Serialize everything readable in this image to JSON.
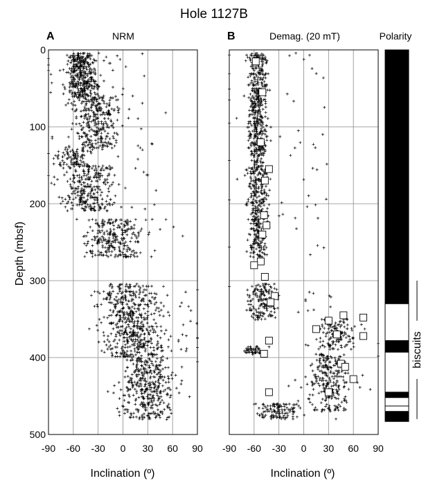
{
  "chart_data": {
    "type": "scatter",
    "title": "Hole 1127B",
    "ylabel": "Depth (mbsf)",
    "ylim": [
      0,
      500
    ],
    "y_ticks": [
      "0",
      "100",
      "200",
      "300",
      "400",
      "500"
    ],
    "panels": [
      {
        "letter": "A",
        "title": "NRM",
        "xlabel": "Inclination (º)",
        "xlim": [
          -90,
          90
        ],
        "x_ticks": [
          "-90",
          "-60",
          "-30",
          "0",
          "30",
          "60",
          "90"
        ],
        "grid": true,
        "clusters": [
          {
            "depth": [
              5,
              60
            ],
            "incl_mean": -50,
            "incl_spread": 15,
            "n": 400
          },
          {
            "depth": [
              60,
              80
            ],
            "incl_mean": -35,
            "incl_spread": 25,
            "n": 120
          },
          {
            "depth": [
              80,
              130
            ],
            "incl_mean": -30,
            "incl_spread": 22,
            "n": 220
          },
          {
            "depth": [
              130,
              150
            ],
            "incl_mean": -60,
            "incl_spread": 15,
            "n": 90
          },
          {
            "depth": [
              150,
              210
            ],
            "incl_mean": -40,
            "incl_spread": 25,
            "n": 300
          },
          {
            "depth": [
              220,
              270
            ],
            "incl_mean": -10,
            "incl_spread": 30,
            "n": 260
          },
          {
            "depth": [
              305,
              360
            ],
            "incl_mean": 10,
            "incl_spread": 30,
            "n": 300
          },
          {
            "depth": [
              360,
              400
            ],
            "incl_mean": 15,
            "incl_spread": 30,
            "n": 260
          },
          {
            "depth": [
              400,
              480
            ],
            "incl_mean": 30,
            "incl_spread": 25,
            "n": 380
          }
        ]
      },
      {
        "letter": "B",
        "title": "Demag. (20 mT)",
        "xlabel": "Inclination (º)",
        "xlim": [
          -90,
          90
        ],
        "x_ticks": [
          "-90",
          "-60",
          "-30",
          "0",
          "30",
          "60",
          "90"
        ],
        "grid": true,
        "clusters": [
          {
            "depth": [
              5,
              130
            ],
            "incl_mean": -55,
            "incl_spread": 10,
            "n": 450
          },
          {
            "depth": [
              130,
              270
            ],
            "incl_mean": -55,
            "incl_spread": 10,
            "n": 420
          },
          {
            "depth": [
              305,
              350
            ],
            "incl_mean": -50,
            "incl_spread": 14,
            "n": 170
          },
          {
            "depth": [
              350,
              390
            ],
            "incl_mean": 40,
            "incl_spread": 18,
            "n": 130
          },
          {
            "depth": [
              385,
              395
            ],
            "incl_mean": -60,
            "incl_spread": 10,
            "n": 50
          },
          {
            "depth": [
              395,
              470
            ],
            "incl_mean": 30,
            "incl_spread": 20,
            "n": 260
          },
          {
            "depth": [
              460,
              480
            ],
            "incl_mean": -30,
            "incl_spread": 20,
            "n": 120
          }
        ],
        "discrete_samples": [
          {
            "incl": -58,
            "depth": 15
          },
          {
            "incl": -50,
            "depth": 55
          },
          {
            "incl": -52,
            "depth": 120
          },
          {
            "incl": -42,
            "depth": 155
          },
          {
            "incl": -47,
            "depth": 170
          },
          {
            "incl": -48,
            "depth": 215
          },
          {
            "incl": -45,
            "depth": 228
          },
          {
            "incl": -50,
            "depth": 240
          },
          {
            "incl": -52,
            "depth": 275
          },
          {
            "incl": -60,
            "depth": 280
          },
          {
            "incl": -47,
            "depth": 295
          },
          {
            "incl": -35,
            "depth": 320
          },
          {
            "incl": -40,
            "depth": 328
          },
          {
            "incl": 30,
            "depth": 352
          },
          {
            "incl": 48,
            "depth": 345
          },
          {
            "incl": 72,
            "depth": 348
          },
          {
            "incl": 15,
            "depth": 363
          },
          {
            "incl": 40,
            "depth": 370
          },
          {
            "incl": 72,
            "depth": 372
          },
          {
            "incl": -42,
            "depth": 378
          },
          {
            "incl": -48,
            "depth": 395
          },
          {
            "incl": 45,
            "depth": 408
          },
          {
            "incl": 50,
            "depth": 412
          },
          {
            "incl": 60,
            "depth": 428
          },
          {
            "incl": 30,
            "depth": 445
          },
          {
            "incl": -42,
            "depth": 445
          }
        ]
      }
    ],
    "polarity": {
      "title": "Polarity",
      "intervals": [
        {
          "top": 0,
          "bottom": 330,
          "normal": true
        },
        {
          "top": 330,
          "bottom": 378,
          "normal": false
        },
        {
          "top": 378,
          "bottom": 393,
          "normal": true
        },
        {
          "top": 393,
          "bottom": 445,
          "normal": false
        },
        {
          "top": 445,
          "bottom": 452,
          "normal": true
        },
        {
          "top": 452,
          "bottom": 463,
          "normal": false
        },
        {
          "top": 470,
          "bottom": 483,
          "normal": true
        }
      ]
    },
    "annotation": {
      "text": "biscuits",
      "top": 300,
      "bottom": 480
    }
  }
}
